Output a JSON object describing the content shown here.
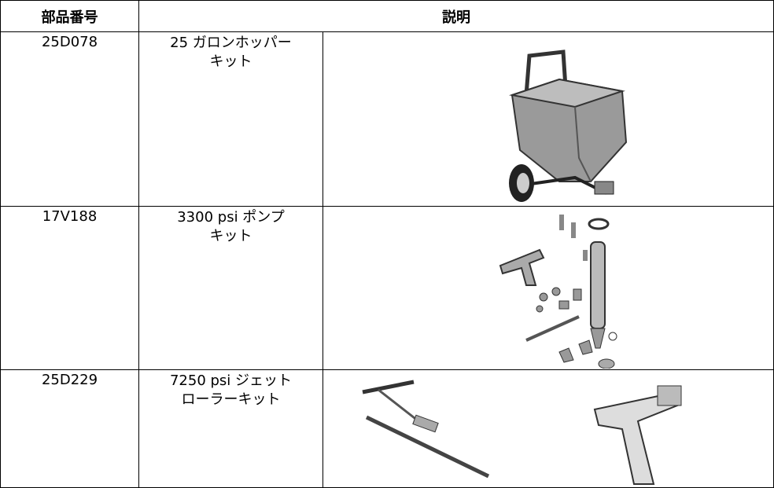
{
  "header": {
    "part_number": "部品番号",
    "description": "説明"
  },
  "rows": [
    {
      "part_number": "25D078",
      "description": [
        "25 ガロンホッパー",
        "キット"
      ]
    },
    {
      "part_number": "17V188",
      "description": [
        "3300 psi ポンプ",
        "キット"
      ]
    },
    {
      "part_number": "25D229",
      "description": [
        "7250 psi ジェット",
        "ローラーキット"
      ]
    }
  ]
}
